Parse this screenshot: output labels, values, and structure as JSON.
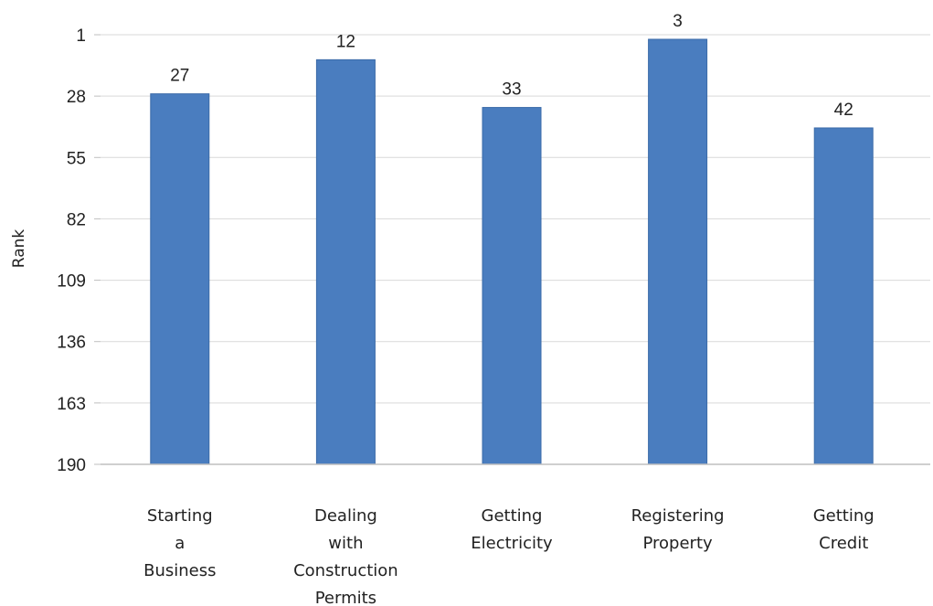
{
  "chart_data": {
    "type": "bar",
    "title": "",
    "xlabel": "",
    "ylabel": "Rank",
    "categories": [
      [
        "Starting",
        "a",
        "Business"
      ],
      [
        "Dealing",
        "with",
        "Construction",
        "Permits"
      ],
      [
        "Getting",
        "Electricity"
      ],
      [
        "Registering",
        "Property"
      ],
      [
        "Getting",
        "Credit"
      ]
    ],
    "values": [
      27,
      12,
      33,
      3,
      42
    ],
    "data_labels": [
      "27",
      "12",
      "33",
      "3",
      "42"
    ],
    "ylim": [
      190,
      1
    ],
    "y_axis_reversed": true,
    "yticks": [
      1,
      28,
      55,
      82,
      109,
      136,
      163,
      190
    ],
    "ytick_labels": [
      "1",
      "28",
      "55",
      "82",
      "109",
      "136",
      "163",
      "190"
    ],
    "grid": true,
    "bar_color": "#4a7dbf",
    "bar_edge_color": "#3a6aa8",
    "grid_color": "#d9d9d9",
    "axis_color": "#bfbfbf",
    "legend": "none"
  }
}
